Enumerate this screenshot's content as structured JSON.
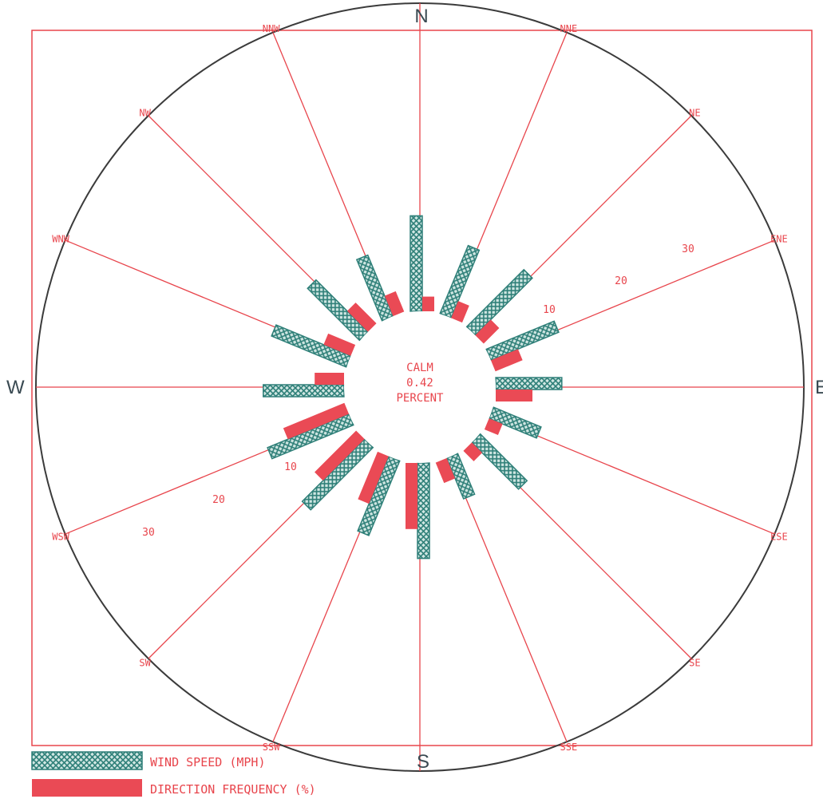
{
  "chart_data": {
    "type": "wind-rose",
    "directions": [
      "N",
      "NNE",
      "NE",
      "ENE",
      "E",
      "ESE",
      "SE",
      "SSE",
      "S",
      "SSW",
      "SW",
      "WSW",
      "W",
      "WNW",
      "NW",
      "NNW"
    ],
    "compass_labels": {
      "N": "N",
      "E": "E",
      "S": "S",
      "W": "W"
    },
    "series": [
      {
        "name": "WIND SPEED (MPH)",
        "unit": "mph",
        "values": [
          13,
          10,
          11,
          10,
          9,
          7,
          9,
          6,
          13,
          11,
          12,
          12,
          11,
          11,
          10,
          9
        ]
      },
      {
        "name": "DIRECTION FREQUENCY (%)",
        "unit": "%",
        "values": [
          2,
          2.5,
          3,
          4,
          5,
          2,
          2,
          3,
          9,
          7,
          8,
          9,
          4,
          4,
          4,
          3
        ]
      }
    ],
    "ring_labels": [
      "10",
      "20",
      "30"
    ],
    "calm": {
      "line1": "CALM",
      "value": "0.42",
      "line3": "PERCENT"
    },
    "colors": {
      "wind_speed": "#2e7f78",
      "direction_frequency": "#ea4a55",
      "spokes": "#e8454c",
      "circle": "#3b3b3b"
    }
  }
}
